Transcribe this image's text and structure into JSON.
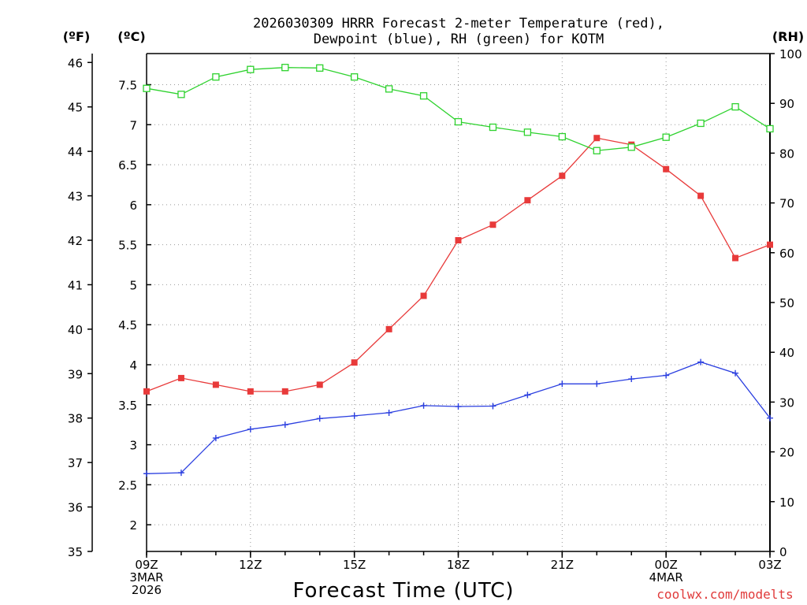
{
  "chart_data": {
    "type": "line",
    "title": "2026030309 HRRR Forecast 2-meter Temperature (red),",
    "subtitle": "Dewpoint (blue), RH (green) for KOTM",
    "xlabel": "Forecast Time (UTC)",
    "credit": "coolwx.com/modelts",
    "units": {
      "left_f": "(ºF)",
      "left_c": "(ºC)",
      "right": "(RH)"
    },
    "x_hours": [
      0,
      1,
      2,
      3,
      4,
      5,
      6,
      7,
      8,
      9,
      10,
      11,
      12,
      13,
      14,
      15,
      16,
      17,
      18
    ],
    "xlim": [
      0,
      18
    ],
    "x_ticks": [
      {
        "hour": 0,
        "lines": [
          "09Z",
          "3MAR",
          "2026"
        ]
      },
      {
        "hour": 3,
        "lines": [
          "12Z"
        ]
      },
      {
        "hour": 6,
        "lines": [
          "15Z"
        ]
      },
      {
        "hour": 9,
        "lines": [
          "18Z"
        ]
      },
      {
        "hour": 12,
        "lines": [
          "21Z"
        ]
      },
      {
        "hour": 15,
        "lines": [
          "00Z",
          "4MAR"
        ]
      },
      {
        "hour": 18,
        "lines": [
          "03Z"
        ]
      }
    ],
    "axes": {
      "fahrenheit": {
        "min": 35,
        "max": 46.2,
        "ticks": [
          35,
          36,
          37,
          38,
          39,
          40,
          41,
          42,
          43,
          44,
          45,
          46
        ]
      },
      "celsius": {
        "ticks": [
          "2",
          "2.5",
          "3",
          "3.5",
          "4",
          "4.5",
          "5",
          "5.5",
          "6",
          "6.5",
          "7",
          "7.5"
        ]
      },
      "rh": {
        "min": 0,
        "max": 100,
        "ticks": [
          0,
          10,
          20,
          30,
          40,
          50,
          60,
          70,
          80,
          90,
          100
        ]
      }
    },
    "series": [
      {
        "name": "Temperature",
        "color": "#e83a3a",
        "marker": "filled-square",
        "axis": "fahrenheit",
        "values": [
          38.6,
          38.9,
          38.75,
          38.6,
          38.6,
          38.75,
          39.25,
          40.0,
          40.75,
          42.0,
          42.35,
          42.9,
          43.45,
          44.3,
          44.15,
          43.6,
          43.0,
          41.6,
          41.9
        ]
      },
      {
        "name": "Dewpoint",
        "color": "#2b3fe0",
        "marker": "plus",
        "axis": "fahrenheit",
        "values": [
          36.75,
          36.77,
          37.55,
          37.75,
          37.85,
          37.99,
          38.05,
          38.12,
          38.28,
          38.26,
          38.27,
          38.52,
          38.77,
          38.77,
          38.88,
          38.96,
          39.26,
          39.01,
          38.0
        ]
      },
      {
        "name": "RH",
        "color": "#2ed22e",
        "marker": "open-square",
        "axis": "rh",
        "values": [
          93.0,
          91.8,
          95.3,
          96.8,
          97.2,
          97.1,
          95.3,
          92.9,
          91.5,
          86.3,
          85.2,
          84.2,
          83.3,
          80.5,
          81.2,
          83.2,
          86.0,
          89.3,
          84.9
        ]
      }
    ]
  }
}
